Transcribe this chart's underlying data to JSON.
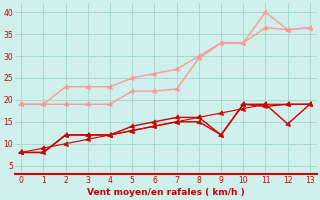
{
  "bg_color": "#cff0eb",
  "grid_color": "#aad8d0",
  "line_light1_color": "#ff9999",
  "line_light2_color": "#ff9999",
  "line_dark1_color": "#cc0000",
  "line_dark2_color": "#cc0000",
  "line_dark3_color": "#cc0000",
  "x": [
    0,
    1,
    2,
    3,
    4,
    5,
    6,
    7,
    8,
    9,
    10,
    11,
    12,
    13
  ],
  "light1_y": [
    19,
    19,
    19,
    19,
    19,
    22,
    22,
    22.5,
    29.5,
    33,
    33,
    40,
    36,
    36.5
  ],
  "light2_y": [
    19,
    19,
    23,
    23,
    23,
    25,
    26,
    27,
    30,
    33,
    33,
    36.5,
    36,
    36.5
  ],
  "dark1_y": [
    8,
    8,
    12,
    12,
    12,
    13,
    14,
    15,
    15,
    12,
    19,
    19,
    14.5,
    19
  ],
  "dark2_y": [
    8,
    8,
    12,
    12,
    12,
    14,
    15,
    16,
    16,
    12,
    19,
    18.5,
    19,
    19
  ],
  "dark3_y": [
    8,
    9,
    10,
    11,
    12,
    13,
    14,
    15,
    16,
    17,
    18,
    19,
    19,
    19
  ],
  "xlabel": "Vent moyen/en rafales ( km/h )",
  "xlim": [
    -0.3,
    13.3
  ],
  "ylim": [
    3,
    42
  ],
  "yticks": [
    5,
    10,
    15,
    20,
    25,
    30,
    35,
    40
  ],
  "xticks": [
    0,
    1,
    2,
    3,
    4,
    5,
    6,
    7,
    8,
    9,
    10,
    11,
    12,
    13
  ]
}
